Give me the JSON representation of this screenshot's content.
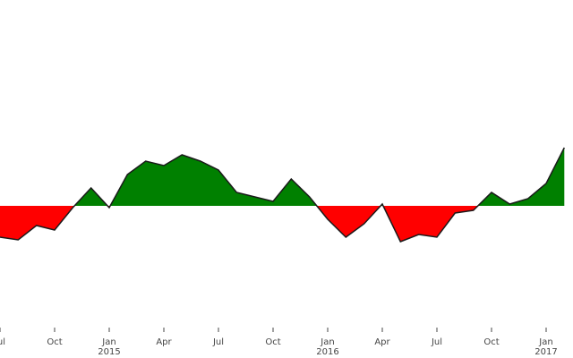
{
  "chart_data": {
    "type": "area",
    "x": [
      "2014-07",
      "2014-08",
      "2014-09",
      "2014-10",
      "2014-11",
      "2014-12",
      "2015-01",
      "2015-02",
      "2015-03",
      "2015-04",
      "2015-05",
      "2015-06",
      "2015-07",
      "2015-08",
      "2015-09",
      "2015-10",
      "2015-11",
      "2015-12",
      "2016-01",
      "2016-02",
      "2016-03",
      "2016-04",
      "2016-05",
      "2016-06",
      "2016-07",
      "2016-08",
      "2016-09",
      "2016-10",
      "2016-11",
      "2016-12",
      "2017-01",
      "2017-02"
    ],
    "values": [
      -35,
      -38,
      -22,
      -27,
      -2,
      20,
      -2,
      35,
      50,
      45,
      57,
      50,
      40,
      15,
      10,
      5,
      30,
      10,
      -15,
      -35,
      -20,
      2,
      -40,
      -32,
      -35,
      -8,
      -5,
      15,
      2,
      8,
      25,
      65
    ],
    "positive_color": "#008000",
    "negative_color": "#ff0000",
    "line_color": "#1a1a1a",
    "xlim": [
      "2014-07",
      "2017-02"
    ],
    "ylim": [
      -130,
      230
    ],
    "baseline": 0,
    "xticks": [
      {
        "value": "2014-07",
        "label": "Jul"
      },
      {
        "value": "2014-10",
        "label": "Oct"
      },
      {
        "value": "2015-01",
        "label": "Jan",
        "year": "2015"
      },
      {
        "value": "2015-04",
        "label": "Apr"
      },
      {
        "value": "2015-07",
        "label": "Jul"
      },
      {
        "value": "2015-10",
        "label": "Oct"
      },
      {
        "value": "2016-01",
        "label": "Jan",
        "year": "2016"
      },
      {
        "value": "2016-04",
        "label": "Apr"
      },
      {
        "value": "2016-07",
        "label": "Jul"
      },
      {
        "value": "2016-10",
        "label": "Oct"
      },
      {
        "value": "2017-01",
        "label": "Jan",
        "year": "2017"
      }
    ]
  }
}
